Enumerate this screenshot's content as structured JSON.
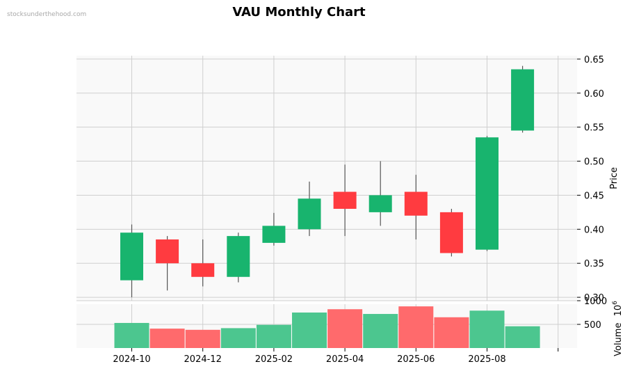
{
  "watermark": "stocksunderthehood.com",
  "chart_data": {
    "type": "candlestick",
    "title": "VAU Monthly Chart",
    "ylabel": "Price",
    "volume_label": "Volume",
    "volume_exponent": "6",
    "price_ylim": [
      0.295,
      0.655
    ],
    "price_ticks": [
      "0.30",
      "0.35",
      "0.40",
      "0.45",
      "0.50",
      "0.55",
      "0.60",
      "0.65"
    ],
    "volume_ylim": [
      0,
      1000
    ],
    "volume_ticks": [
      "500",
      "1000"
    ],
    "x_ticks": [
      "2024-10",
      "2024-12",
      "2025-02",
      "2025-04",
      "2025-06",
      "2025-08",
      ""
    ],
    "colors": {
      "up": "#18b46e",
      "down": "#ff3b40",
      "up_volume": "#4cc68f",
      "down_volume": "#ff6a6c",
      "wick": "#555555"
    },
    "candles": [
      {
        "month": "2024-10",
        "open": 0.325,
        "high": 0.407,
        "low": 0.3,
        "close": 0.395,
        "volume": 530
      },
      {
        "month": "2024-11",
        "open": 0.385,
        "high": 0.39,
        "low": 0.31,
        "close": 0.35,
        "volume": 410
      },
      {
        "month": "2024-12",
        "open": 0.35,
        "high": 0.385,
        "low": 0.316,
        "close": 0.33,
        "volume": 385
      },
      {
        "month": "2025-01",
        "open": 0.33,
        "high": 0.395,
        "low": 0.322,
        "close": 0.39,
        "volume": 420
      },
      {
        "month": "2025-02",
        "open": 0.38,
        "high": 0.424,
        "low": 0.376,
        "close": 0.405,
        "volume": 490
      },
      {
        "month": "2025-03",
        "open": 0.4,
        "high": 0.47,
        "low": 0.39,
        "close": 0.445,
        "volume": 750
      },
      {
        "month": "2025-04",
        "open": 0.455,
        "high": 0.495,
        "low": 0.39,
        "close": 0.43,
        "volume": 820
      },
      {
        "month": "2025-05",
        "open": 0.425,
        "high": 0.5,
        "low": 0.405,
        "close": 0.45,
        "volume": 720
      },
      {
        "month": "2025-06",
        "open": 0.455,
        "high": 0.48,
        "low": 0.385,
        "close": 0.42,
        "volume": 880
      },
      {
        "month": "2025-07",
        "open": 0.425,
        "high": 0.43,
        "low": 0.36,
        "close": 0.365,
        "volume": 650
      },
      {
        "month": "2025-08",
        "open": 0.37,
        "high": 0.537,
        "low": 0.368,
        "close": 0.535,
        "volume": 790
      },
      {
        "month": "2025-09",
        "open": 0.545,
        "high": 0.64,
        "low": 0.542,
        "close": 0.635,
        "volume": 460
      }
    ]
  }
}
